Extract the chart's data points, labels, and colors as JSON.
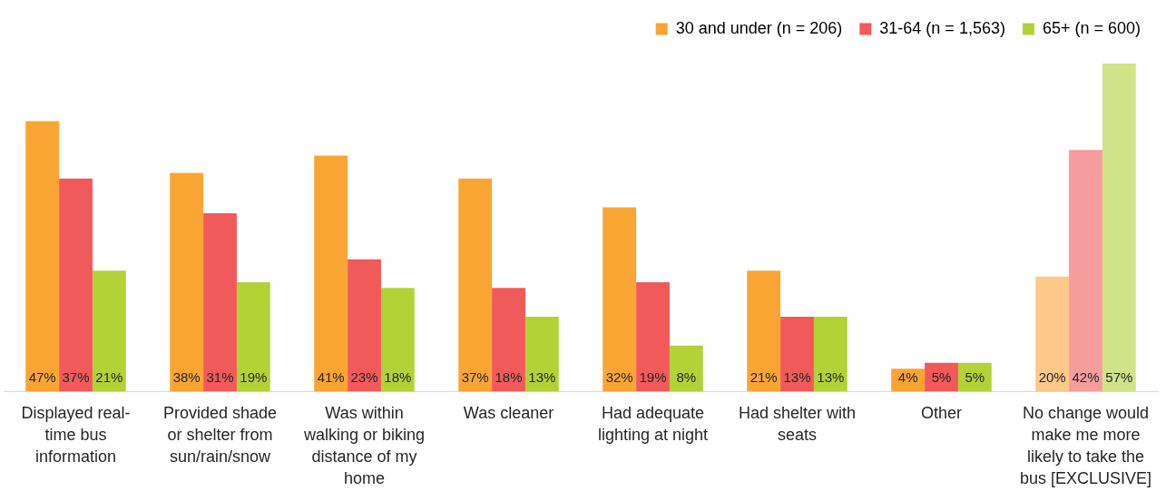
{
  "chart_data": {
    "type": "bar",
    "categories": [
      "Displayed real-time bus information",
      "Provided shade or shelter from sun/rain/snow",
      "Was within walking or biking distance of my home",
      "Was cleaner",
      "Had adequate lighting at night",
      "Had shelter with seats",
      "Other",
      "No change would make me more likely to take the bus [EXCLUSIVE]"
    ],
    "series": [
      {
        "name": "30 and under (n = 206)",
        "color": "#f9a533",
        "colors": [
          "#f9a533",
          "#f9a533",
          "#f9a533",
          "#f9a533",
          "#f9a533",
          "#f9a533",
          "#f9a533",
          "#fcc98a"
        ],
        "values": [
          47,
          38,
          41,
          37,
          32,
          21,
          4,
          20
        ],
        "value_labels": [
          "47%",
          "38%",
          "41%",
          "37%",
          "32%",
          "21%",
          "4%",
          "20%"
        ]
      },
      {
        "name": "31-64 (n = 1,563)",
        "color": "#f05a5b",
        "colors": [
          "#f05a5b",
          "#f05a5b",
          "#f05a5b",
          "#f05a5b",
          "#f05a5b",
          "#f05a5b",
          "#f05a5b",
          "#f59c9d"
        ],
        "values": [
          37,
          31,
          23,
          18,
          19,
          13,
          5,
          42
        ],
        "value_labels": [
          "37%",
          "31%",
          "23%",
          "18%",
          "19%",
          "13%",
          "5%",
          "42%"
        ]
      },
      {
        "name": "65+ (n = 600)",
        "color": "#b2d235",
        "colors": [
          "#b2d235",
          "#b2d235",
          "#b2d235",
          "#b2d235",
          "#b2d235",
          "#b2d235",
          "#b2d235",
          "#d1e388"
        ],
        "values": [
          21,
          19,
          18,
          13,
          8,
          13,
          5,
          57
        ],
        "value_labels": [
          "21%",
          "19%",
          "18%",
          "13%",
          "8%",
          "13%",
          "5%",
          "57%"
        ]
      }
    ],
    "legend": "top right",
    "grid": false,
    "tick_labels": "x"
  }
}
